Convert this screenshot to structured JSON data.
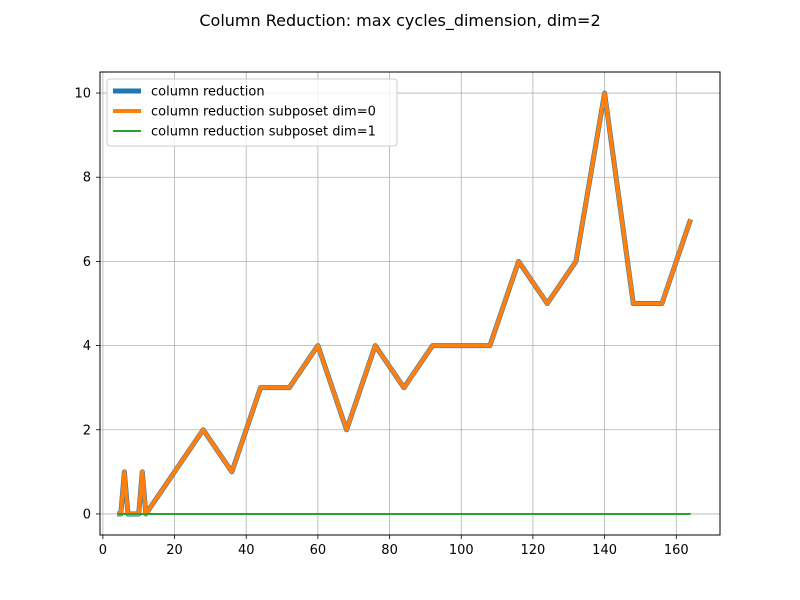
{
  "chart_data": {
    "type": "line",
    "title": "Column Reduction: max cycles_dimension, dim=2",
    "xlabel": "",
    "ylabel": "",
    "xlim": [
      -0.8,
      172.2
    ],
    "ylim": [
      -0.5,
      10.5
    ],
    "x_ticks": [
      0,
      20,
      40,
      60,
      80,
      100,
      120,
      140,
      160
    ],
    "y_ticks": [
      0,
      2,
      4,
      6,
      8,
      10
    ],
    "grid": true,
    "legend_position": "top-left",
    "series": [
      {
        "name": "column reduction",
        "color": "#1f77b4",
        "x": [
          4,
          5,
          6,
          7,
          8,
          9,
          10,
          11,
          12,
          20,
          28,
          36,
          44,
          52,
          60,
          68,
          76,
          84,
          92,
          100,
          108,
          116,
          124,
          132,
          140,
          148,
          156,
          164
        ],
        "y": [
          0,
          0,
          1,
          0,
          0,
          0,
          0,
          1,
          0,
          1,
          2,
          1,
          3,
          3,
          4,
          2,
          4,
          3,
          4,
          4,
          4,
          6,
          5,
          6,
          10,
          5,
          5,
          7
        ]
      },
      {
        "name": "column reduction subposet dim=0",
        "color": "#ff7f0e",
        "x": [
          4,
          5,
          6,
          7,
          8,
          9,
          10,
          11,
          12,
          20,
          28,
          36,
          44,
          52,
          60,
          68,
          76,
          84,
          92,
          100,
          108,
          116,
          124,
          132,
          140,
          148,
          156,
          164
        ],
        "y": [
          0,
          0,
          1,
          0,
          0,
          0,
          0,
          1,
          0,
          1,
          2,
          1,
          3,
          3,
          4,
          2,
          4,
          3,
          4,
          4,
          4,
          6,
          5,
          6,
          10,
          5,
          5,
          7
        ]
      },
      {
        "name": "column reduction subposet dim=1",
        "color": "#2ca02c",
        "x": [
          4,
          5,
          6,
          7,
          8,
          9,
          10,
          11,
          12,
          20,
          28,
          36,
          44,
          52,
          60,
          68,
          76,
          84,
          92,
          100,
          108,
          116,
          124,
          132,
          140,
          148,
          156,
          164
        ],
        "y": [
          0,
          0,
          0,
          0,
          0,
          0,
          0,
          0,
          0,
          0,
          0,
          0,
          0,
          0,
          0,
          0,
          0,
          0,
          0,
          0,
          0,
          0,
          0,
          0,
          0,
          0,
          0,
          0
        ]
      }
    ]
  }
}
